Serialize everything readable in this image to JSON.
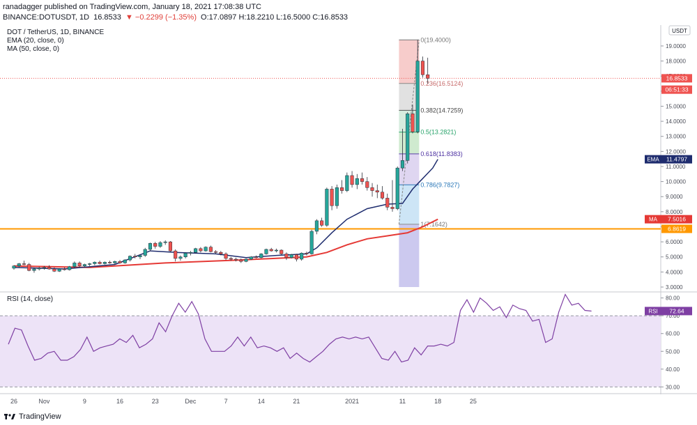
{
  "header": {
    "published": "ranadagger published on TradingView.com, January 18, 2021 17:08:38 UTC",
    "symbol": "BINANCE:DOTUSDT, 1D",
    "last": "16.8533",
    "change": "▼ −0.2299 (−1.35%)",
    "ohlc": "O:17.0897 H:18.2210 L:16.5000 C:16.8533"
  },
  "legend": {
    "title": "DOT / TetherUS, 1D, BINANCE",
    "ema": "EMA (20, close, 0)",
    "ma": "MA (50, close, 0)",
    "rsi": "RSI (14, close)"
  },
  "currency": "USDT",
  "footer": {
    "brand": "TradingView"
  },
  "colors": {
    "up": "#26a69a",
    "down": "#ef5350",
    "ema": "#1e2c6e",
    "ma": "#e53935",
    "support": "#ff9800",
    "rsi": "#7e3fa3",
    "rsiBand": "#ede3f7"
  },
  "chart_data": [
    {
      "type": "candlestick",
      "title": "DOT / TetherUS, 1D, BINANCE",
      "x_ticks": [
        "26",
        "Nov",
        "9",
        "16",
        "23",
        "Dec",
        "7",
        "14",
        "21",
        "2021",
        "11",
        "18",
        "25"
      ],
      "x_tick_days": [
        0,
        6,
        14,
        21,
        28,
        35,
        42,
        49,
        56,
        67,
        77,
        84,
        91
      ],
      "y_ticks": [
        "3.0000",
        "4.0000",
        "5.0000",
        "6.0000",
        "7.0000",
        "8.0000",
        "9.0000",
        "10.0000",
        "11.0000",
        "12.0000",
        "13.0000",
        "14.0000",
        "15.0000",
        "16.0000",
        "17.0000",
        "18.0000",
        "19.0000"
      ],
      "ylim": [
        3.0,
        20.2
      ],
      "xlim": [
        -1,
        105
      ],
      "ohlc": [
        [
          4.25,
          4.45,
          4.15,
          4.4
        ],
        [
          4.4,
          4.6,
          4.3,
          4.55
        ],
        [
          4.55,
          4.75,
          4.45,
          4.5
        ],
        [
          4.5,
          4.6,
          4.05,
          4.1
        ],
        [
          4.1,
          4.3,
          3.95,
          4.2
        ],
        [
          4.2,
          4.35,
          4.1,
          4.25
        ],
        [
          4.25,
          4.4,
          4.15,
          4.3
        ],
        [
          4.3,
          4.45,
          4.15,
          4.2
        ],
        [
          4.2,
          4.3,
          4.0,
          4.05
        ],
        [
          4.05,
          4.25,
          4.0,
          4.2
        ],
        [
          4.2,
          4.3,
          4.1,
          4.15
        ],
        [
          4.15,
          4.4,
          4.1,
          4.35
        ],
        [
          4.35,
          4.7,
          4.25,
          4.6
        ],
        [
          4.6,
          4.7,
          4.3,
          4.4
        ],
        [
          4.4,
          4.55,
          4.3,
          4.5
        ],
        [
          4.5,
          4.6,
          4.4,
          4.55
        ],
        [
          4.55,
          4.7,
          4.45,
          4.65
        ],
        [
          4.65,
          4.75,
          4.5,
          4.55
        ],
        [
          4.55,
          4.7,
          4.5,
          4.65
        ],
        [
          4.65,
          4.75,
          4.55,
          4.6
        ],
        [
          4.6,
          4.75,
          4.5,
          4.7
        ],
        [
          4.7,
          4.8,
          4.55,
          4.6
        ],
        [
          4.6,
          4.85,
          4.55,
          4.8
        ],
        [
          4.8,
          5.1,
          4.7,
          5.05
        ],
        [
          5.05,
          5.2,
          4.9,
          5.0
        ],
        [
          5.0,
          5.15,
          4.85,
          5.1
        ],
        [
          5.1,
          5.6,
          5.0,
          5.5
        ],
        [
          5.5,
          5.95,
          5.4,
          5.9
        ],
        [
          5.9,
          6.0,
          5.55,
          5.7
        ],
        [
          5.7,
          6.05,
          5.6,
          5.95
        ],
        [
          5.95,
          6.1,
          5.8,
          6.0
        ],
        [
          6.0,
          6.05,
          5.3,
          5.4
        ],
        [
          5.4,
          5.5,
          4.7,
          4.9
        ],
        [
          4.9,
          5.1,
          4.75,
          5.0
        ],
        [
          5.0,
          5.3,
          4.9,
          5.25
        ],
        [
          5.25,
          5.4,
          5.1,
          5.3
        ],
        [
          5.3,
          5.6,
          5.25,
          5.55
        ],
        [
          5.55,
          5.65,
          5.3,
          5.4
        ],
        [
          5.4,
          5.7,
          5.35,
          5.65
        ],
        [
          5.65,
          5.75,
          5.3,
          5.35
        ],
        [
          5.35,
          5.45,
          5.2,
          5.3
        ],
        [
          5.3,
          5.4,
          5.1,
          5.2
        ],
        [
          5.2,
          5.3,
          4.8,
          4.9
        ],
        [
          4.9,
          5.0,
          4.75,
          4.85
        ],
        [
          4.85,
          4.95,
          4.7,
          4.8
        ],
        [
          4.8,
          4.9,
          4.6,
          4.7
        ],
        [
          4.7,
          4.9,
          4.65,
          4.85
        ],
        [
          4.85,
          5.05,
          4.8,
          5.0
        ],
        [
          5.0,
          5.1,
          4.9,
          4.95
        ],
        [
          4.95,
          5.25,
          4.9,
          5.2
        ],
        [
          5.2,
          5.55,
          5.15,
          5.5
        ],
        [
          5.5,
          5.6,
          5.35,
          5.4
        ],
        [
          5.4,
          5.55,
          5.3,
          5.45
        ],
        [
          5.45,
          5.5,
          5.15,
          5.2
        ],
        [
          5.2,
          5.3,
          4.8,
          4.95
        ],
        [
          4.95,
          5.2,
          4.9,
          5.15
        ],
        [
          5.15,
          5.2,
          4.7,
          4.85
        ],
        [
          4.85,
          5.3,
          4.75,
          5.25
        ],
        [
          5.25,
          5.35,
          5.1,
          5.2
        ],
        [
          5.2,
          6.8,
          5.15,
          6.7
        ],
        [
          6.7,
          7.5,
          6.5,
          7.4
        ],
        [
          7.4,
          7.6,
          7.0,
          7.1
        ],
        [
          7.1,
          9.6,
          7.0,
          9.5
        ],
        [
          9.5,
          9.7,
          8.1,
          8.4
        ],
        [
          8.4,
          9.8,
          8.2,
          9.6
        ],
        [
          9.6,
          10.1,
          9.2,
          9.4
        ],
        [
          9.4,
          10.6,
          9.3,
          10.4
        ],
        [
          10.4,
          10.7,
          9.6,
          9.8
        ],
        [
          9.8,
          10.5,
          9.5,
          10.2
        ],
        [
          10.2,
          10.6,
          9.8,
          10.0
        ],
        [
          10.0,
          10.3,
          9.4,
          9.6
        ],
        [
          9.6,
          9.9,
          9.0,
          9.4
        ],
        [
          9.4,
          9.8,
          8.9,
          9.3
        ],
        [
          9.3,
          9.7,
          8.8,
          8.9
        ],
        [
          8.9,
          9.2,
          8.1,
          8.3
        ],
        [
          8.3,
          10.1,
          8.0,
          8.2
        ],
        [
          8.2,
          11.0,
          8.1,
          10.9
        ],
        [
          10.9,
          13.5,
          10.7,
          11.4
        ],
        [
          11.4,
          14.6,
          11.2,
          14.5
        ],
        [
          14.5,
          15.1,
          13.2,
          13.3
        ],
        [
          13.3,
          19.4,
          13.2,
          18.0
        ],
        [
          18.0,
          18.3,
          16.9,
          17.09
        ],
        [
          17.09,
          18.22,
          16.5,
          16.85
        ]
      ],
      "ema20": [
        [
          0,
          4.3
        ],
        [
          10,
          4.2
        ],
        [
          20,
          4.5
        ],
        [
          27,
          5.4
        ],
        [
          32,
          5.3
        ],
        [
          40,
          5.2
        ],
        [
          46,
          4.95
        ],
        [
          52,
          5.1
        ],
        [
          58,
          5.2
        ],
        [
          60,
          5.6
        ],
        [
          63,
          6.6
        ],
        [
          66,
          7.5
        ],
        [
          70,
          8.2
        ],
        [
          74,
          8.5
        ],
        [
          77,
          8.55
        ],
        [
          79,
          9.5
        ],
        [
          81,
          10.2
        ],
        [
          83,
          10.9
        ],
        [
          84,
          11.48
        ]
      ],
      "ma50": [
        [
          0,
          4.4
        ],
        [
          15,
          4.3
        ],
        [
          30,
          4.6
        ],
        [
          45,
          4.8
        ],
        [
          58,
          5.0
        ],
        [
          62,
          5.3
        ],
        [
          66,
          5.8
        ],
        [
          70,
          6.2
        ],
        [
          74,
          6.4
        ],
        [
          78,
          6.6
        ],
        [
          81,
          7.0
        ],
        [
          84,
          7.5
        ]
      ],
      "levels": [
        {
          "label": "6.8619",
          "value": 6.8619
        }
      ],
      "fib": [
        {
          "ratio": "0",
          "label": "0(19.4000)",
          "value": 19.4
        },
        {
          "ratio": "0.236",
          "label": "0.236(16.5124)",
          "value": 16.5124
        },
        {
          "ratio": "0.382",
          "label": "0.382(14.7259)",
          "value": 14.7259
        },
        {
          "ratio": "0.5",
          "label": "0.5(13.2821)",
          "value": 13.2821
        },
        {
          "ratio": "0.618",
          "label": "0.618(11.8383)",
          "value": 11.8383
        },
        {
          "ratio": "0.786",
          "label": "0.786(9.7827)",
          "value": 9.7827
        },
        {
          "ratio": "1",
          "label": "1(7.1642)",
          "value": 7.1642
        }
      ],
      "fib_start_day": 76.3,
      "fib_end_day": 80.3,
      "price_labels": [
        {
          "text": "16.8533",
          "value": 16.8533,
          "color": "#ef5350"
        },
        {
          "text": "06:51:33",
          "value": 16.1,
          "color": "#ef5350"
        },
        {
          "text": "11.4797",
          "value": 11.4797,
          "color": "#1e2c6e",
          "tag": "EMA"
        },
        {
          "text": "7.5016",
          "value": 7.5016,
          "color": "#e53935",
          "tag": "MA"
        },
        {
          "text": "6.8619",
          "value": 6.8619,
          "color": "#ff9800"
        }
      ]
    },
    {
      "type": "line",
      "title": "RSI (14, close)",
      "y_ticks": [
        "30.00",
        "40.00",
        "50.00",
        "60.00",
        "70.00",
        "80.00"
      ],
      "ylim": [
        27,
        83
      ],
      "band": [
        30,
        70
      ],
      "last_label": "72.64",
      "last_value": 72.64,
      "values": [
        [
          0,
          54
        ],
        [
          2,
          63
        ],
        [
          4,
          62
        ],
        [
          6,
          53
        ],
        [
          8,
          45
        ],
        [
          10,
          46
        ],
        [
          12,
          49
        ],
        [
          14,
          50
        ],
        [
          16,
          45
        ],
        [
          18,
          45
        ],
        [
          20,
          47
        ],
        [
          22,
          51
        ],
        [
          24,
          58
        ],
        [
          26,
          50
        ],
        [
          28,
          52
        ],
        [
          30,
          53
        ],
        [
          32,
          54
        ],
        [
          34,
          57
        ],
        [
          36,
          55
        ],
        [
          38,
          59
        ],
        [
          40,
          52
        ],
        [
          42,
          54
        ],
        [
          44,
          57
        ],
        [
          46,
          66
        ],
        [
          48,
          61
        ],
        [
          50,
          70
        ],
        [
          52,
          77
        ],
        [
          54,
          72
        ],
        [
          56,
          78
        ],
        [
          58,
          71
        ],
        [
          60,
          57
        ],
        [
          62,
          50
        ],
        [
          64,
          50
        ],
        [
          66,
          50
        ],
        [
          68,
          53
        ],
        [
          70,
          58
        ],
        [
          72,
          53
        ],
        [
          74,
          58
        ],
        [
          76,
          52
        ],
        [
          78,
          53
        ],
        [
          80,
          52
        ],
        [
          82,
          50
        ],
        [
          84,
          52
        ],
        [
          86,
          46
        ],
        [
          88,
          49
        ],
        [
          90,
          46
        ],
        [
          92,
          44
        ],
        [
          94,
          47
        ],
        [
          96,
          50
        ],
        [
          98,
          54
        ],
        [
          100,
          57
        ],
        [
          102,
          58
        ],
        [
          104,
          57
        ],
        [
          106,
          58
        ],
        [
          108,
          57
        ],
        [
          110,
          58
        ],
        [
          112,
          52
        ],
        [
          114,
          46
        ],
        [
          116,
          45
        ],
        [
          118,
          50
        ],
        [
          120,
          44
        ],
        [
          122,
          45
        ],
        [
          124,
          52
        ],
        [
          126,
          48
        ],
        [
          128,
          53
        ],
        [
          130,
          53
        ],
        [
          132,
          54
        ],
        [
          134,
          53
        ],
        [
          136,
          55
        ],
        [
          138,
          73
        ],
        [
          140,
          79
        ],
        [
          142,
          72
        ],
        [
          144,
          80
        ],
        [
          146,
          77
        ],
        [
          148,
          73
        ],
        [
          150,
          75
        ],
        [
          152,
          69
        ],
        [
          154,
          76
        ],
        [
          156,
          74
        ],
        [
          158,
          73
        ],
        [
          160,
          67
        ],
        [
          162,
          68
        ],
        [
          164,
          55
        ],
        [
          166,
          57
        ],
        [
          168,
          72
        ],
        [
          170,
          82
        ],
        [
          172,
          76
        ],
        [
          174,
          77
        ],
        [
          176,
          73
        ],
        [
          178,
          72.64
        ]
      ]
    }
  ]
}
